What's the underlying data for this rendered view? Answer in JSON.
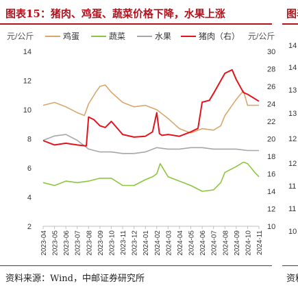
{
  "header": {
    "title": "图表15：猪肉、鸡蛋、蔬菜价格下降，水果上涨",
    "next_panel_title": "图表"
  },
  "footer": {
    "source": "资料来源：Wind，中邮证券研究所",
    "next_panel_source": "资料"
  },
  "next_panel_ticks": [
    "14",
    "14",
    "13",
    "13",
    "12",
    "12",
    "11",
    "11",
    "10"
  ],
  "colors": {
    "accent": "#b3121d",
    "egg": "#d9a66b",
    "vegetable": "#8cc63f",
    "fruit": "#a6a6a6",
    "pork": "#e3121b"
  },
  "chart_data": {
    "type": "line",
    "left_axis_unit": "元/公斤",
    "right_axis_unit": "元/公斤",
    "ylim_left": [
      2,
      14
    ],
    "ylim_right": [
      10,
      30
    ],
    "yticks_left": [
      "2",
      "4",
      "6",
      "8",
      "10",
      "12",
      "14"
    ],
    "yticks_right": [
      "10",
      "12",
      "14",
      "16",
      "18",
      "20",
      "22",
      "24",
      "26",
      "28",
      "30"
    ],
    "x_ticks": [
      "2023-04",
      "2023-05",
      "2023-06",
      "2023-07",
      "2023-08",
      "2023-09",
      "2023-10",
      "2023-11",
      "2023-12",
      "2024-01",
      "2024-02",
      "2024-03",
      "2024-04",
      "2024-05",
      "2024-06",
      "2024-07",
      "2024-08",
      "2024-09",
      "2024-10",
      "2024-11"
    ],
    "x_range": [
      "2023-04",
      "2024-11"
    ],
    "grid": false,
    "legend_position": "top",
    "series": [
      {
        "name": "鸡蛋",
        "axis": "left",
        "color": "#d9a66b",
        "x": [
          "2023-04",
          "2023-05",
          "2023-06",
          "2023-07",
          "2023-07-20",
          "2023-08",
          "2023-08-20",
          "2023-09",
          "2023-09-15",
          "2023-10",
          "2023-11",
          "2023-12",
          "2024-01",
          "2024-02",
          "2024-03",
          "2024-04",
          "2024-05",
          "2024-06",
          "2024-07",
          "2024-07-20",
          "2024-08",
          "2024-08-20",
          "2024-09",
          "2024-09-20",
          "2024-10",
          "2024-11"
        ],
        "values": [
          10.3,
          10.5,
          10.2,
          9.8,
          9.6,
          10.4,
          11.2,
          11.6,
          11.7,
          11.2,
          10.5,
          10.2,
          10.3,
          10.0,
          9.4,
          8.7,
          8.4,
          8.7,
          8.6,
          8.9,
          9.6,
          10.3,
          10.7,
          11.3,
          10.3,
          10.3
        ]
      },
      {
        "name": "蔬菜",
        "axis": "left",
        "color": "#8cc63f",
        "x": [
          "2023-04",
          "2023-05",
          "2023-06",
          "2023-07",
          "2023-08",
          "2023-09",
          "2023-10",
          "2023-11",
          "2023-12",
          "2024-01",
          "2024-01-20",
          "2024-02",
          "2024-02-10",
          "2024-03",
          "2024-04",
          "2024-05",
          "2024-06",
          "2024-07",
          "2024-07-20",
          "2024-08",
          "2024-09",
          "2024-09-20",
          "2024-10",
          "2024-10-20",
          "2024-11"
        ],
        "values": [
          5.0,
          4.8,
          5.1,
          5.0,
          5.1,
          5.3,
          5.3,
          4.8,
          4.8,
          5.2,
          5.4,
          5.6,
          6.3,
          5.4,
          5.1,
          4.8,
          4.4,
          4.5,
          5.0,
          5.7,
          6.1,
          6.4,
          6.3,
          5.7,
          5.4
        ]
      },
      {
        "name": "水果",
        "axis": "left",
        "color": "#a6a6a6",
        "x": [
          "2023-04",
          "2023-05",
          "2023-06",
          "2023-07",
          "2023-08",
          "2023-09",
          "2023-10",
          "2023-11",
          "2023-12",
          "2024-01",
          "2024-02",
          "2024-03",
          "2024-04",
          "2024-05",
          "2024-06",
          "2024-07",
          "2024-08",
          "2024-09",
          "2024-10",
          "2024-11"
        ],
        "values": [
          7.9,
          8.2,
          8.3,
          7.9,
          7.3,
          7.1,
          7.1,
          7.0,
          7.0,
          7.1,
          7.4,
          7.3,
          7.3,
          7.4,
          7.4,
          7.3,
          7.3,
          7.3,
          7.2,
          7.2
        ]
      },
      {
        "name": "猪肉（右）",
        "axis": "right",
        "color": "#e3121b",
        "x": [
          "2023-04",
          "2023-05",
          "2023-06",
          "2023-07",
          "2023-07-25",
          "2023-08",
          "2023-08-15",
          "2023-09",
          "2023-09-15",
          "2023-10",
          "2023-11",
          "2023-12",
          "2024-01",
          "2024-01-20",
          "2024-02",
          "2024-02-08",
          "2024-02-15",
          "2024-03",
          "2024-04",
          "2024-05",
          "2024-05-20",
          "2024-06",
          "2024-06-20",
          "2024-07",
          "2024-08",
          "2024-08-20",
          "2024-09",
          "2024-09-20",
          "2024-10",
          "2024-11"
        ],
        "values": [
          19.8,
          19.3,
          19.5,
          19.3,
          19.2,
          22.5,
          22.2,
          21.5,
          21.3,
          22.0,
          20.5,
          20.2,
          20.3,
          20.8,
          23.0,
          20.6,
          20.4,
          20.5,
          20.3,
          20.8,
          21.2,
          24.2,
          24.4,
          25.2,
          27.5,
          27.9,
          26.8,
          25.3,
          25.1,
          24.3
        ]
      }
    ]
  }
}
